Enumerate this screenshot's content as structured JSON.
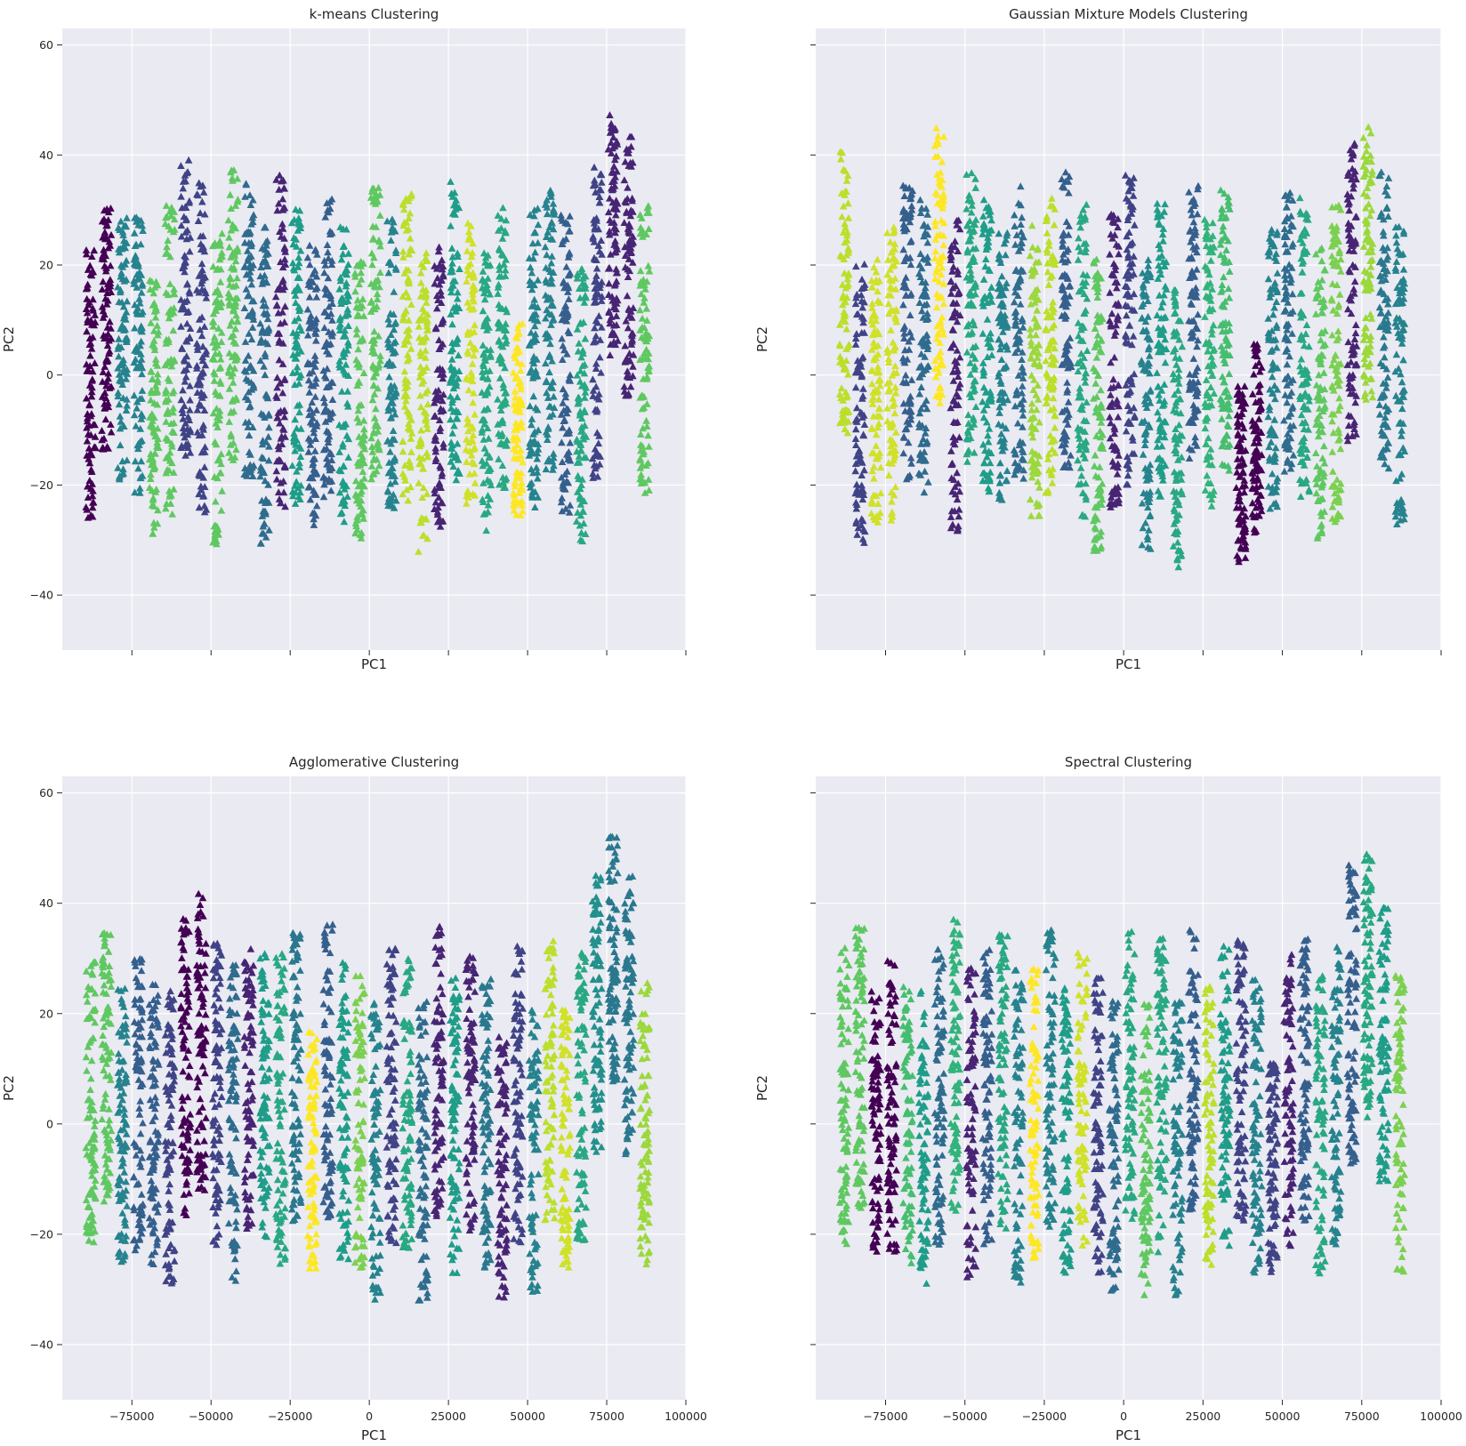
{
  "figure": {
    "background": "#ffffff",
    "axes_facecolor": "#eaeaf2",
    "grid_color": "#ffffff"
  },
  "chart_data": [
    {
      "type": "scatter",
      "title": "k-means Clustering",
      "xlabel": "PC1",
      "ylabel": "PC2",
      "xlim": [
        -97000,
        100000
      ],
      "ylim": [
        -50,
        63
      ],
      "xticks": [
        -75000,
        -50000,
        -25000,
        0,
        25000,
        50000,
        75000,
        100000
      ],
      "xtick_labels_visible": false,
      "yticks": [
        -40,
        -20,
        0,
        20,
        40,
        60
      ],
      "ytick_labels_visible": true,
      "marker": "triangle-up",
      "colormap": "viridis",
      "seed": 11,
      "points_per_column": 90,
      "columns": [
        {
          "x": -88000,
          "cluster": 0.0,
          "center": -2,
          "spread": 16
        },
        {
          "x": -83000,
          "cluster": 0.0,
          "center": 8,
          "spread": 14
        },
        {
          "x": -78000,
          "cluster": 0.45,
          "center": 5,
          "spread": 15
        },
        {
          "x": -73000,
          "cluster": 0.45,
          "center": 3,
          "spread": 16
        },
        {
          "x": -68000,
          "cluster": 0.75,
          "center": -5,
          "spread": 15
        },
        {
          "x": -63000,
          "cluster": 0.75,
          "center": 2,
          "spread": 18
        },
        {
          "x": -58000,
          "cluster": 0.2,
          "center": 12,
          "spread": 17
        },
        {
          "x": -53000,
          "cluster": 0.2,
          "center": 5,
          "spread": 19
        },
        {
          "x": -48000,
          "cluster": 0.75,
          "center": -3,
          "spread": 18
        },
        {
          "x": -43000,
          "cluster": 0.75,
          "center": 10,
          "spread": 17
        },
        {
          "x": -38000,
          "cluster": 0.35,
          "center": 8,
          "spread": 17
        },
        {
          "x": -33000,
          "cluster": 0.35,
          "center": -2,
          "spread": 18
        },
        {
          "x": -28000,
          "cluster": 0.1,
          "center": 6,
          "spread": 19
        },
        {
          "x": -23000,
          "cluster": 0.55,
          "center": 3,
          "spread": 17
        },
        {
          "x": -18000,
          "cluster": 0.3,
          "center": -2,
          "spread": 16
        },
        {
          "x": -13000,
          "cluster": 0.3,
          "center": 5,
          "spread": 17
        },
        {
          "x": -8000,
          "cluster": 0.55,
          "center": 0,
          "spread": 17
        },
        {
          "x": -3000,
          "cluster": 0.75,
          "center": -5,
          "spread": 16
        },
        {
          "x": 2000,
          "cluster": 0.75,
          "center": 8,
          "spread": 17
        },
        {
          "x": 7000,
          "cluster": 0.45,
          "center": 2,
          "spread": 17
        },
        {
          "x": 12000,
          "cluster": 0.9,
          "center": 5,
          "spread": 18
        },
        {
          "x": 17000,
          "cluster": 0.9,
          "center": -5,
          "spread": 17
        },
        {
          "x": 22000,
          "cluster": 0.1,
          "center": -2,
          "spread": 16
        },
        {
          "x": 27000,
          "cluster": 0.55,
          "center": 8,
          "spread": 17
        },
        {
          "x": 32000,
          "cluster": 0.93,
          "center": 2,
          "spread": 16
        },
        {
          "x": 37000,
          "cluster": 0.6,
          "center": -3,
          "spread": 16
        },
        {
          "x": 42000,
          "cluster": 0.6,
          "center": 5,
          "spread": 16
        },
        {
          "x": 47000,
          "cluster": 1.0,
          "center": -8,
          "spread": 11
        },
        {
          "x": 52000,
          "cluster": 0.45,
          "center": 3,
          "spread": 17
        },
        {
          "x": 57000,
          "cluster": 0.45,
          "center": 8,
          "spread": 16
        },
        {
          "x": 62000,
          "cluster": 0.3,
          "center": 2,
          "spread": 17
        },
        {
          "x": 67000,
          "cluster": 0.6,
          "center": -5,
          "spread": 16
        },
        {
          "x": 72000,
          "cluster": 0.2,
          "center": 10,
          "spread": 18
        },
        {
          "x": 77000,
          "cluster": 0.1,
          "center": 25,
          "spread": 14
        },
        {
          "x": 82000,
          "cluster": 0.1,
          "center": 20,
          "spread": 15
        },
        {
          "x": 87000,
          "cluster": 0.75,
          "center": 5,
          "spread": 17
        }
      ]
    },
    {
      "type": "scatter",
      "title": "Gaussian Mixture Models Clustering",
      "xlabel": "PC1",
      "ylabel": "PC2",
      "xlim": [
        -97000,
        100000
      ],
      "ylim": [
        -50,
        63
      ],
      "xticks": [
        -75000,
        -50000,
        -25000,
        0,
        25000,
        50000,
        75000,
        100000
      ],
      "xtick_labels_visible": false,
      "yticks": [
        -40,
        -20,
        0,
        20,
        40,
        60
      ],
      "ytick_labels_visible": false,
      "marker": "triangle-up",
      "colormap": "viridis",
      "seed": 23,
      "points_per_column": 90,
      "columns": [
        {
          "x": -88000,
          "cluster": 0.9,
          "center": 15,
          "spread": 16
        },
        {
          "x": -83000,
          "cluster": 0.2,
          "center": -5,
          "spread": 16
        },
        {
          "x": -78000,
          "cluster": 0.93,
          "center": -3,
          "spread": 15
        },
        {
          "x": -73000,
          "cluster": 0.93,
          "center": 0,
          "spread": 17
        },
        {
          "x": -68000,
          "cluster": 0.3,
          "center": 8,
          "spread": 17
        },
        {
          "x": -63000,
          "cluster": 0.35,
          "center": 5,
          "spread": 17
        },
        {
          "x": -58000,
          "cluster": 1.0,
          "center": 20,
          "spread": 16
        },
        {
          "x": -53000,
          "cluster": 0.1,
          "center": 0,
          "spread": 18
        },
        {
          "x": -48000,
          "cluster": 0.6,
          "center": 10,
          "spread": 17
        },
        {
          "x": -43000,
          "cluster": 0.55,
          "center": 5,
          "spread": 17
        },
        {
          "x": -38000,
          "cluster": 0.45,
          "center": -2,
          "spread": 18
        },
        {
          "x": -33000,
          "cluster": 0.35,
          "center": 8,
          "spread": 17
        },
        {
          "x": -28000,
          "cluster": 0.85,
          "center": 0,
          "spread": 17
        },
        {
          "x": -23000,
          "cluster": 0.9,
          "center": 5,
          "spread": 17
        },
        {
          "x": -18000,
          "cluster": 0.3,
          "center": 10,
          "spread": 17
        },
        {
          "x": -13000,
          "cluster": 0.6,
          "center": 3,
          "spread": 18
        },
        {
          "x": -8000,
          "cluster": 0.75,
          "center": -5,
          "spread": 17
        },
        {
          "x": -3000,
          "cluster": 0.1,
          "center": 2,
          "spread": 17
        },
        {
          "x": 2000,
          "cluster": 0.2,
          "center": 8,
          "spread": 18
        },
        {
          "x": 7000,
          "cluster": 0.45,
          "center": -5,
          "spread": 17
        },
        {
          "x": 12000,
          "cluster": 0.55,
          "center": 5,
          "spread": 17
        },
        {
          "x": 17000,
          "cluster": 0.6,
          "center": -10,
          "spread": 16
        },
        {
          "x": 22000,
          "cluster": 0.3,
          "center": 10,
          "spread": 16
        },
        {
          "x": 27000,
          "cluster": 0.65,
          "center": 3,
          "spread": 17
        },
        {
          "x": 32000,
          "cluster": 0.7,
          "center": 8,
          "spread": 16
        },
        {
          "x": 37000,
          "cluster": 0.0,
          "center": -18,
          "spread": 10
        },
        {
          "x": 42000,
          "cluster": 0.0,
          "center": -12,
          "spread": 11
        },
        {
          "x": 47000,
          "cluster": 0.45,
          "center": 0,
          "spread": 17
        },
        {
          "x": 52000,
          "cluster": 0.35,
          "center": 8,
          "spread": 16
        },
        {
          "x": 57000,
          "cluster": 0.6,
          "center": 5,
          "spread": 17
        },
        {
          "x": 62000,
          "cluster": 0.75,
          "center": -3,
          "spread": 17
        },
        {
          "x": 67000,
          "cluster": 0.8,
          "center": 2,
          "spread": 18
        },
        {
          "x": 72000,
          "cluster": 0.1,
          "center": 15,
          "spread": 17
        },
        {
          "x": 77000,
          "cluster": 0.85,
          "center": 20,
          "spread": 16
        },
        {
          "x": 82000,
          "cluster": 0.4,
          "center": 10,
          "spread": 17
        },
        {
          "x": 87000,
          "cluster": 0.45,
          "center": 0,
          "spread": 17
        }
      ]
    },
    {
      "type": "scatter",
      "title": "Agglomerative Clustering",
      "xlabel": "PC1",
      "ylabel": "PC2",
      "xlim": [
        -97000,
        100000
      ],
      "ylim": [
        -50,
        63
      ],
      "xticks": [
        -75000,
        -50000,
        -25000,
        0,
        25000,
        50000,
        75000,
        100000
      ],
      "xtick_labels": [
        "−75000",
        "−50000",
        "−25000",
        "0",
        "25000",
        "50000",
        "75000",
        "100000"
      ],
      "xtick_labels_visible": true,
      "yticks": [
        -40,
        -20,
        0,
        20,
        40,
        60
      ],
      "ytick_labels_visible": true,
      "marker": "triangle-up",
      "colormap": "viridis",
      "seed": 37,
      "points_per_column": 90,
      "columns": [
        {
          "x": -88000,
          "cluster": 0.75,
          "center": 5,
          "spread": 17
        },
        {
          "x": -83000,
          "cluster": 0.75,
          "center": 10,
          "spread": 16
        },
        {
          "x": -78000,
          "cluster": 0.45,
          "center": 0,
          "spread": 16
        },
        {
          "x": -73000,
          "cluster": 0.3,
          "center": 3,
          "spread": 17
        },
        {
          "x": -68000,
          "cluster": 0.3,
          "center": 0,
          "spread": 16
        },
        {
          "x": -63000,
          "cluster": 0.2,
          "center": -3,
          "spread": 17
        },
        {
          "x": -58000,
          "cluster": 0.0,
          "center": 10,
          "spread": 17
        },
        {
          "x": -53000,
          "cluster": 0.0,
          "center": 15,
          "spread": 17
        },
        {
          "x": -48000,
          "cluster": 0.2,
          "center": 5,
          "spread": 18
        },
        {
          "x": -43000,
          "cluster": 0.35,
          "center": 0,
          "spread": 18
        },
        {
          "x": -38000,
          "cluster": 0.1,
          "center": 8,
          "spread": 17
        },
        {
          "x": -33000,
          "cluster": 0.55,
          "center": 5,
          "spread": 17
        },
        {
          "x": -28000,
          "cluster": 0.6,
          "center": 2,
          "spread": 18
        },
        {
          "x": -23000,
          "cluster": 0.4,
          "center": 8,
          "spread": 17
        },
        {
          "x": -18000,
          "cluster": 1.0,
          "center": -5,
          "spread": 14
        },
        {
          "x": -13000,
          "cluster": 0.3,
          "center": 10,
          "spread": 17
        },
        {
          "x": -8000,
          "cluster": 0.55,
          "center": 2,
          "spread": 17
        },
        {
          "x": -3000,
          "cluster": 0.8,
          "center": 0,
          "spread": 17
        },
        {
          "x": 2000,
          "cluster": 0.45,
          "center": -5,
          "spread": 17
        },
        {
          "x": 7000,
          "cluster": 0.2,
          "center": 5,
          "spread": 17
        },
        {
          "x": 12000,
          "cluster": 0.6,
          "center": 3,
          "spread": 17
        },
        {
          "x": 17000,
          "cluster": 0.35,
          "center": -5,
          "spread": 17
        },
        {
          "x": 22000,
          "cluster": 0.1,
          "center": 10,
          "spread": 17
        },
        {
          "x": 27000,
          "cluster": 0.55,
          "center": 0,
          "spread": 17
        },
        {
          "x": 32000,
          "cluster": 0.1,
          "center": 5,
          "spread": 16
        },
        {
          "x": 37000,
          "cluster": 0.4,
          "center": 0,
          "spread": 17
        },
        {
          "x": 42000,
          "cluster": 0.1,
          "center": -8,
          "spread": 15
        },
        {
          "x": 47000,
          "cluster": 0.2,
          "center": 5,
          "spread": 17
        },
        {
          "x": 52000,
          "cluster": 0.45,
          "center": -5,
          "spread": 16
        },
        {
          "x": 57000,
          "cluster": 0.9,
          "center": 8,
          "spread": 16
        },
        {
          "x": 62000,
          "cluster": 0.93,
          "center": -3,
          "spread": 15
        },
        {
          "x": 67000,
          "cluster": 0.6,
          "center": 5,
          "spread": 17
        },
        {
          "x": 72000,
          "cluster": 0.5,
          "center": 20,
          "spread": 16
        },
        {
          "x": 77000,
          "cluster": 0.4,
          "center": 30,
          "spread": 14
        },
        {
          "x": 82000,
          "cluster": 0.4,
          "center": 20,
          "spread": 16
        },
        {
          "x": 87000,
          "cluster": 0.85,
          "center": 0,
          "spread": 16
        }
      ]
    },
    {
      "type": "scatter",
      "title": "Spectral Clustering",
      "xlabel": "PC1",
      "ylabel": "PC2",
      "xlim": [
        -97000,
        100000
      ],
      "ylim": [
        -50,
        63
      ],
      "xticks": [
        -75000,
        -50000,
        -25000,
        0,
        25000,
        50000,
        75000,
        100000
      ],
      "xtick_labels": [
        "−75000",
        "−50000",
        "−25000",
        "0",
        "25000",
        "50000",
        "75000",
        "100000"
      ],
      "xtick_labels_visible": true,
      "yticks": [
        -40,
        -20,
        0,
        20,
        40,
        60
      ],
      "ytick_labels_visible": false,
      "marker": "triangle-up",
      "colormap": "viridis",
      "seed": 53,
      "points_per_column": 90,
      "columns": [
        {
          "x": -88000,
          "cluster": 0.75,
          "center": 5,
          "spread": 17
        },
        {
          "x": -83000,
          "cluster": 0.75,
          "center": 10,
          "spread": 16
        },
        {
          "x": -78000,
          "cluster": 0.0,
          "center": 0,
          "spread": 15
        },
        {
          "x": -73000,
          "cluster": 0.0,
          "center": 3,
          "spread": 17
        },
        {
          "x": -68000,
          "cluster": 0.7,
          "center": 0,
          "spread": 16
        },
        {
          "x": -63000,
          "cluster": 0.55,
          "center": -3,
          "spread": 17
        },
        {
          "x": -58000,
          "cluster": 0.35,
          "center": 5,
          "spread": 17
        },
        {
          "x": -53000,
          "cluster": 0.65,
          "center": 10,
          "spread": 17
        },
        {
          "x": -48000,
          "cluster": 0.1,
          "center": 0,
          "spread": 18
        },
        {
          "x": -43000,
          "cluster": 0.3,
          "center": 5,
          "spread": 17
        },
        {
          "x": -38000,
          "cluster": 0.6,
          "center": 8,
          "spread": 17
        },
        {
          "x": -33000,
          "cluster": 0.45,
          "center": 0,
          "spread": 18
        },
        {
          "x": -28000,
          "cluster": 1.0,
          "center": 2,
          "spread": 17
        },
        {
          "x": -23000,
          "cluster": 0.45,
          "center": 8,
          "spread": 17
        },
        {
          "x": -18000,
          "cluster": 0.55,
          "center": -2,
          "spread": 17
        },
        {
          "x": -13000,
          "cluster": 0.93,
          "center": 5,
          "spread": 17
        },
        {
          "x": -8000,
          "cluster": 0.2,
          "center": 0,
          "spread": 17
        },
        {
          "x": -3000,
          "cluster": 0.35,
          "center": -5,
          "spread": 17
        },
        {
          "x": 2000,
          "cluster": 0.6,
          "center": 8,
          "spread": 17
        },
        {
          "x": 7000,
          "cluster": 0.75,
          "center": -5,
          "spread": 17
        },
        {
          "x": 12000,
          "cluster": 0.6,
          "center": 5,
          "spread": 18
        },
        {
          "x": 17000,
          "cluster": 0.45,
          "center": -5,
          "spread": 17
        },
        {
          "x": 22000,
          "cluster": 0.3,
          "center": 10,
          "spread": 16
        },
        {
          "x": 27000,
          "cluster": 0.9,
          "center": 0,
          "spread": 16
        },
        {
          "x": 32000,
          "cluster": 0.55,
          "center": 5,
          "spread": 17
        },
        {
          "x": 37000,
          "cluster": 0.2,
          "center": 8,
          "spread": 16
        },
        {
          "x": 42000,
          "cluster": 0.45,
          "center": 0,
          "spread": 17
        },
        {
          "x": 47000,
          "cluster": 0.2,
          "center": -8,
          "spread": 12
        },
        {
          "x": 52000,
          "cluster": 0.1,
          "center": 5,
          "spread": 17
        },
        {
          "x": 57000,
          "cluster": 0.3,
          "center": 8,
          "spread": 16
        },
        {
          "x": 62000,
          "cluster": 0.6,
          "center": 0,
          "spread": 17
        },
        {
          "x": 67000,
          "cluster": 0.45,
          "center": 5,
          "spread": 17
        },
        {
          "x": 72000,
          "cluster": 0.3,
          "center": 20,
          "spread": 17
        },
        {
          "x": 77000,
          "cluster": 0.6,
          "center": 25,
          "spread": 15
        },
        {
          "x": 82000,
          "cluster": 0.55,
          "center": 15,
          "spread": 16
        },
        {
          "x": 87000,
          "cluster": 0.8,
          "center": 0,
          "spread": 17
        }
      ]
    }
  ]
}
